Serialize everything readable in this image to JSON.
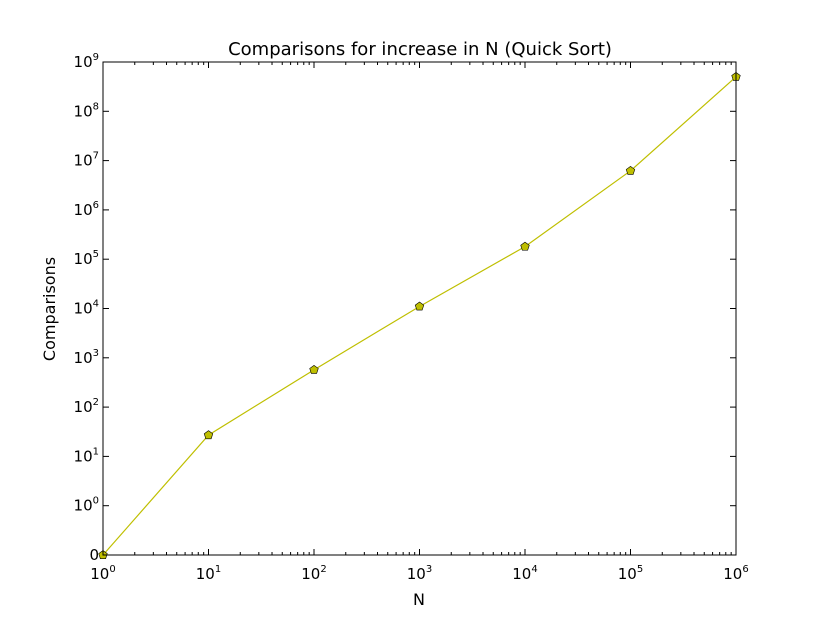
{
  "chart_data": {
    "type": "line",
    "title": "Comparisons for increase in N (Quick Sort)",
    "xlabel": "N",
    "ylabel": "Comparisons",
    "xscale": "log",
    "yscale": "symlog",
    "xlim": [
      1,
      1000000
    ],
    "ylim": [
      0,
      1000000000
    ],
    "grid": false,
    "legend": "none",
    "x_ticks": [
      {
        "value": 1,
        "base": "10",
        "exp": "0"
      },
      {
        "value": 10,
        "base": "10",
        "exp": "1"
      },
      {
        "value": 100,
        "base": "10",
        "exp": "2"
      },
      {
        "value": 1000,
        "base": "10",
        "exp": "3"
      },
      {
        "value": 10000,
        "base": "10",
        "exp": "4"
      },
      {
        "value": 100000,
        "base": "10",
        "exp": "5"
      },
      {
        "value": 1000000,
        "base": "10",
        "exp": "6"
      }
    ],
    "y_ticks": [
      {
        "value": 0,
        "base": "0",
        "exp": ""
      },
      {
        "value": 1,
        "base": "10",
        "exp": "0"
      },
      {
        "value": 10,
        "base": "10",
        "exp": "1"
      },
      {
        "value": 100,
        "base": "10",
        "exp": "2"
      },
      {
        "value": 1000,
        "base": "10",
        "exp": "3"
      },
      {
        "value": 10000,
        "base": "10",
        "exp": "4"
      },
      {
        "value": 100000,
        "base": "10",
        "exp": "5"
      },
      {
        "value": 1000000,
        "base": "10",
        "exp": "6"
      },
      {
        "value": 10000000,
        "base": "10",
        "exp": "7"
      },
      {
        "value": 100000000,
        "base": "10",
        "exp": "8"
      },
      {
        "value": 1000000000,
        "base": "10",
        "exp": "9"
      }
    ],
    "series": [
      {
        "color": "#bfbf00",
        "marker": "pentagon",
        "x": [
          1,
          10,
          100,
          1000,
          10000,
          100000,
          1000000
        ],
        "y": [
          0,
          27,
          570,
          11000,
          180000,
          6200000,
          500000000
        ]
      }
    ]
  }
}
